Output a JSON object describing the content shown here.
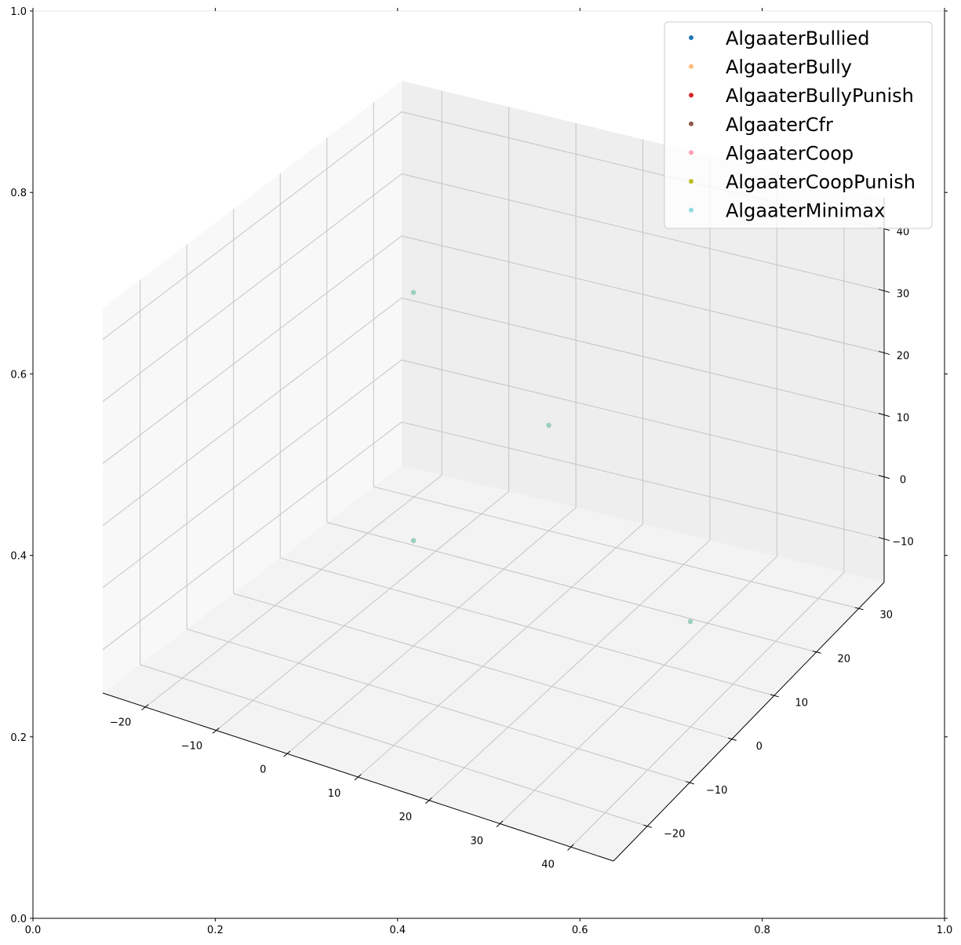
{
  "chart_data": {
    "type": "scatter",
    "projection": "3d",
    "title": "",
    "xlabel": "",
    "ylabel": "",
    "zlabel": "",
    "grid": true,
    "legend_position": "top-right",
    "outer_axes": {
      "x_range": [
        0,
        1
      ],
      "y_range": [
        0,
        1
      ],
      "x_ticks": [
        "0.0",
        "0.2",
        "0.4",
        "0.6",
        "0.8",
        "1.0"
      ],
      "y_ticks": [
        "0.0",
        "0.2",
        "0.4",
        "0.6",
        "0.8",
        "1.0"
      ]
    },
    "axes3d": {
      "x_range": [
        -26,
        46
      ],
      "y_range": [
        -28,
        36
      ],
      "z_range": [
        -17,
        45
      ],
      "x_ticks": [
        "−20",
        "−10",
        "0",
        "10",
        "20",
        "30",
        "40"
      ],
      "y_ticks": [
        "−20",
        "−10",
        "0",
        "10",
        "20",
        "30"
      ],
      "z_ticks": [
        "−10",
        "0",
        "10",
        "20",
        "30",
        "40"
      ]
    },
    "series": [
      {
        "name": "AlgaaterBullied",
        "color": "#1f77b4",
        "points": [
          [
            0,
            0,
            0
          ],
          [
            40,
            0,
            0
          ],
          [
            0,
            30,
            0
          ],
          [
            0,
            0,
            40
          ]
        ]
      },
      {
        "name": "AlgaaterBully",
        "color": "#ffbb78",
        "points": [
          [
            0,
            0,
            0
          ],
          [
            40,
            0,
            0
          ],
          [
            0,
            30,
            0
          ],
          [
            0,
            0,
            40
          ]
        ]
      },
      {
        "name": "AlgaaterBullyPunish",
        "color": "#d62728",
        "points": [
          [
            0,
            0,
            0
          ],
          [
            40,
            0,
            0
          ],
          [
            0,
            30,
            0
          ],
          [
            0,
            0,
            40
          ]
        ]
      },
      {
        "name": "AlgaaterCfr",
        "color": "#8c564b",
        "points": [
          [
            0,
            0,
            0
          ],
          [
            40,
            0,
            0
          ],
          [
            0,
            30,
            0
          ],
          [
            0,
            0,
            40
          ]
        ]
      },
      {
        "name": "AlgaaterCoop",
        "color": "#ff9fb4",
        "points": [
          [
            0,
            0,
            0
          ],
          [
            40,
            0,
            0
          ],
          [
            0,
            30,
            0
          ],
          [
            0,
            0,
            40
          ]
        ]
      },
      {
        "name": "AlgaaterCoopPunish",
        "color": "#bcbd22",
        "points": [
          [
            0,
            0,
            0
          ],
          [
            40,
            0,
            0
          ],
          [
            0,
            30,
            0
          ],
          [
            0,
            0,
            40
          ]
        ]
      },
      {
        "name": "AlgaaterMinimax",
        "color": "#8fd8e0",
        "points": [
          [
            0,
            0,
            0
          ],
          [
            40,
            0,
            0
          ],
          [
            0,
            30,
            0
          ],
          [
            0,
            0,
            40
          ]
        ]
      }
    ]
  }
}
